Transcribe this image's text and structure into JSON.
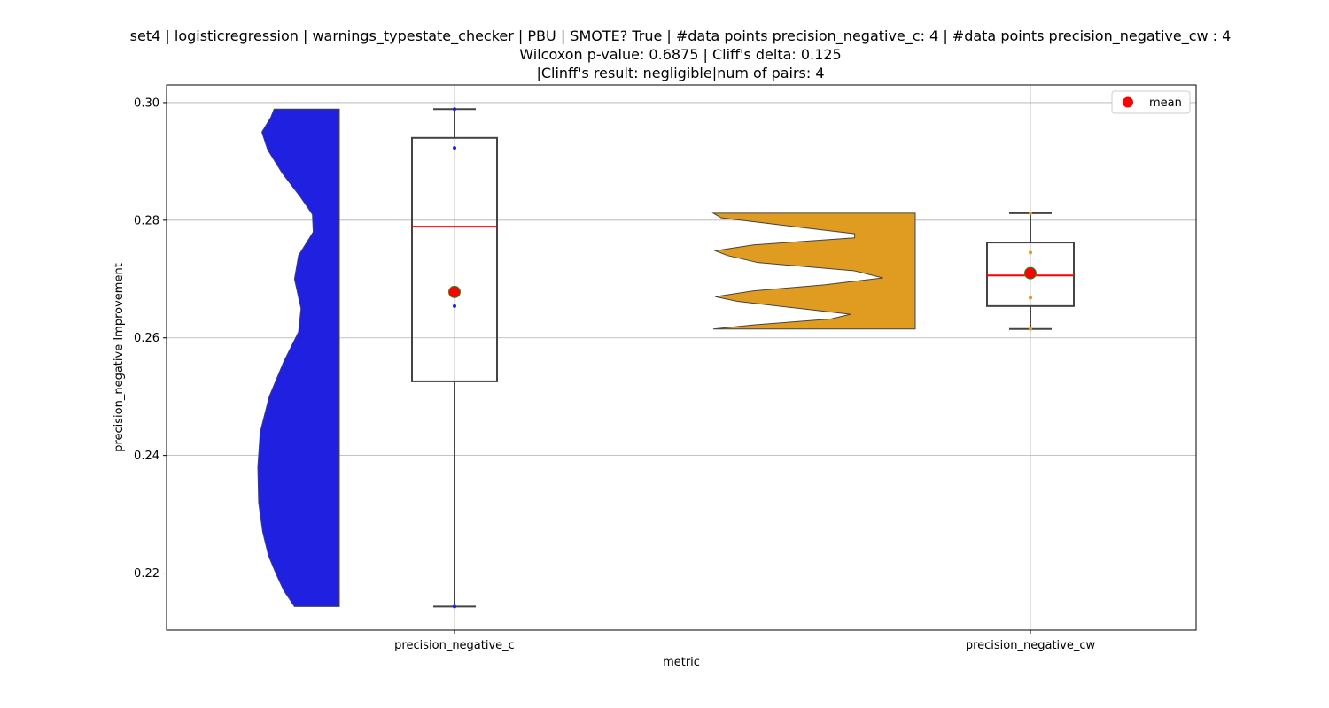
{
  "chart_data": {
    "type": "violin+box",
    "title_lines": [
      "set4 | logisticregression | warnings_typestate_checker | PBU | SMOTE? True | #data points precision_negative_c: 4 | #data points precision_negative_cw : 4",
      "Wilcoxon p-value: 0.6875 | Cliff's delta: 0.125",
      "|Clinff's result: negligible|num of pairs: 4"
    ],
    "xlabel": "metric",
    "ylabel": "precision_negative Improvement",
    "categories": [
      "precision_negative_c",
      "precision_negative_cw"
    ],
    "ylim": [
      0.2103,
      0.303
    ],
    "yticks": [
      0.22,
      0.24,
      0.26,
      0.28,
      0.3
    ],
    "ytick_labels": [
      "0.22",
      "0.24",
      "0.26",
      "0.28",
      "0.30"
    ],
    "grid": true,
    "legend": {
      "placement": "upper-right",
      "entries": [
        {
          "label": "mean",
          "color": "#ff0000"
        }
      ]
    },
    "series": [
      {
        "category": "precision_negative_c",
        "violin_color": "#2020e0",
        "point_color": "#2020e0",
        "points": [
          0.2143,
          0.2654,
          0.2923,
          0.2989
        ],
        "box": {
          "min": 0.2143,
          "q1": 0.2526,
          "median": 0.2789,
          "q3": 0.294,
          "max": 0.2989
        },
        "mean": 0.2678,
        "violin_profile": [
          [
            0.2143,
            0.55
          ],
          [
            0.217,
            0.68
          ],
          [
            0.22,
            0.78
          ],
          [
            0.223,
            0.87
          ],
          [
            0.227,
            0.94
          ],
          [
            0.232,
            0.99
          ],
          [
            0.238,
            1.0
          ],
          [
            0.244,
            0.97
          ],
          [
            0.25,
            0.86
          ],
          [
            0.256,
            0.68
          ],
          [
            0.261,
            0.5
          ],
          [
            0.265,
            0.47
          ],
          [
            0.27,
            0.55
          ],
          [
            0.274,
            0.5
          ],
          [
            0.278,
            0.32
          ],
          [
            0.281,
            0.33
          ],
          [
            0.284,
            0.48
          ],
          [
            0.288,
            0.7
          ],
          [
            0.292,
            0.88
          ],
          [
            0.295,
            0.95
          ],
          [
            0.2975,
            0.84
          ],
          [
            0.2989,
            0.8
          ]
        ]
      },
      {
        "category": "precision_negative_cw",
        "violin_color": "#e09c20",
        "point_color": "#e09c20",
        "points": [
          0.2615,
          0.2668,
          0.2745,
          0.2812
        ],
        "box": {
          "min": 0.2615,
          "q1": 0.2654,
          "median": 0.2706,
          "q3": 0.2762,
          "max": 0.2812
        },
        "mean": 0.271,
        "violin_profile": [
          [
            0.2615,
            1.0
          ],
          [
            0.2622,
            0.8
          ],
          [
            0.2632,
            0.42
          ],
          [
            0.264,
            0.32
          ],
          [
            0.2648,
            0.52
          ],
          [
            0.2662,
            0.88
          ],
          [
            0.267,
            0.99
          ],
          [
            0.268,
            0.8
          ],
          [
            0.269,
            0.45
          ],
          [
            0.2702,
            0.16
          ],
          [
            0.2714,
            0.3
          ],
          [
            0.2728,
            0.78
          ],
          [
            0.274,
            0.93
          ],
          [
            0.2748,
            0.99
          ],
          [
            0.2758,
            0.8
          ],
          [
            0.277,
            0.3
          ],
          [
            0.2777,
            0.3
          ],
          [
            0.279,
            0.62
          ],
          [
            0.2804,
            0.96
          ],
          [
            0.2812,
            1.0
          ]
        ]
      }
    ]
  }
}
